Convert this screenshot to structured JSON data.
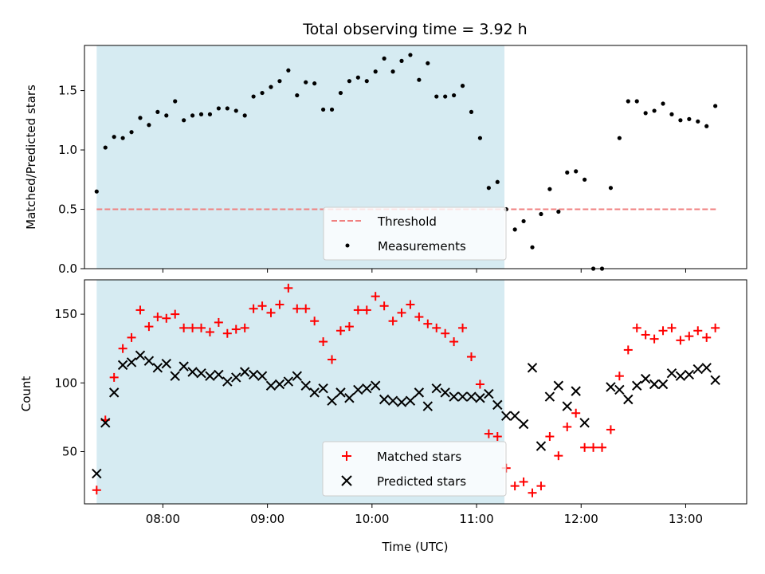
{
  "chart_data": [
    {
      "type": "scatter",
      "title": "Total observing time = 3.92 h",
      "xlabel": "",
      "ylabel": "Matched/Predicted stars",
      "xlim": [
        "07:15",
        "13:35"
      ],
      "ylim": [
        0.0,
        1.88
      ],
      "yticks": [
        0.0,
        0.5,
        1.0,
        1.5
      ],
      "yticklabels": [
        "0.0",
        "0.5",
        "1.0",
        "1.5"
      ],
      "shaded_span": {
        "start": "07:22",
        "end": "11:16",
        "color": "#add8e6"
      },
      "threshold": {
        "name": "Threshold",
        "value": 0.5,
        "from": "07:22",
        "to": "13:18",
        "color": "#f08080",
        "style": "dashed"
      },
      "legend": {
        "placement": "lower center",
        "entries": [
          "Threshold",
          "Measurements"
        ]
      },
      "series": [
        {
          "name": "Measurements",
          "marker": "dot",
          "color": "#000000",
          "x": [
            "07:22",
            "07:27",
            "07:32",
            "07:37",
            "07:42",
            "07:47",
            "07:52",
            "07:57",
            "08:02",
            "08:07",
            "08:12",
            "08:17",
            "08:22",
            "08:27",
            "08:32",
            "08:37",
            "08:42",
            "08:47",
            "08:52",
            "08:57",
            "09:02",
            "09:07",
            "09:12",
            "09:17",
            "09:22",
            "09:27",
            "09:32",
            "09:37",
            "09:42",
            "09:47",
            "09:52",
            "09:57",
            "10:02",
            "10:07",
            "10:12",
            "10:17",
            "10:22",
            "10:27",
            "10:32",
            "10:37",
            "10:42",
            "10:47",
            "10:52",
            "10:57",
            "11:02",
            "11:07",
            "11:12",
            "11:17",
            "11:22",
            "11:27",
            "11:32",
            "11:37",
            "11:42",
            "11:47",
            "11:52",
            "11:57",
            "12:02",
            "12:07",
            "12:12",
            "12:17",
            "12:22",
            "12:27",
            "12:32",
            "12:37",
            "12:42",
            "12:47",
            "12:52",
            "12:57",
            "13:02",
            "13:07",
            "13:12",
            "13:17"
          ],
          "y": [
            0.65,
            1.02,
            1.11,
            1.1,
            1.15,
            1.27,
            1.21,
            1.32,
            1.29,
            1.41,
            1.25,
            1.29,
            1.3,
            1.3,
            1.35,
            1.35,
            1.33,
            1.29,
            1.45,
            1.48,
            1.53,
            1.58,
            1.67,
            1.46,
            1.57,
            1.56,
            1.34,
            1.34,
            1.48,
            1.58,
            1.61,
            1.58,
            1.66,
            1.77,
            1.66,
            1.75,
            1.8,
            1.59,
            1.73,
            1.45,
            1.45,
            1.46,
            1.54,
            1.32,
            1.1,
            0.68,
            0.73,
            0.5,
            0.33,
            0.4,
            0.18,
            0.46,
            0.67,
            0.48,
            0.81,
            0.82,
            0.75,
            0.0,
            0.0,
            0.68,
            1.1,
            1.41,
            1.41,
            1.31,
            1.33,
            1.39,
            1.3,
            1.25,
            1.26,
            1.24,
            1.2,
            1.37
          ]
        }
      ]
    },
    {
      "type": "scatter",
      "title": "",
      "xlabel": "Time (UTC)",
      "ylabel": "Count",
      "xlim": [
        "07:15",
        "13:35"
      ],
      "ylim": [
        12,
        175
      ],
      "xticks": [
        "08:00",
        "09:00",
        "10:00",
        "11:00",
        "12:00",
        "13:00"
      ],
      "xticklabels": [
        "08:00",
        "09:00",
        "10:00",
        "11:00",
        "12:00",
        "13:00"
      ],
      "yticks": [
        50,
        100,
        150
      ],
      "yticklabels": [
        "50",
        "100",
        "150"
      ],
      "shaded_span": {
        "start": "07:22",
        "end": "11:16",
        "color": "#add8e6"
      },
      "legend": {
        "placement": "lower center",
        "entries": [
          "Matched stars",
          "Predicted stars"
        ]
      },
      "series": [
        {
          "name": "Matched stars",
          "marker": "plus",
          "color": "#ff0000",
          "x": [
            "07:22",
            "07:27",
            "07:32",
            "07:37",
            "07:42",
            "07:47",
            "07:52",
            "07:57",
            "08:02",
            "08:07",
            "08:12",
            "08:17",
            "08:22",
            "08:27",
            "08:32",
            "08:37",
            "08:42",
            "08:47",
            "08:52",
            "08:57",
            "09:02",
            "09:07",
            "09:12",
            "09:17",
            "09:22",
            "09:27",
            "09:32",
            "09:37",
            "09:42",
            "09:47",
            "09:52",
            "09:57",
            "10:02",
            "10:07",
            "10:12",
            "10:17",
            "10:22",
            "10:27",
            "10:32",
            "10:37",
            "10:42",
            "10:47",
            "10:52",
            "10:57",
            "11:02",
            "11:07",
            "11:12",
            "11:17",
            "11:22",
            "11:27",
            "11:32",
            "11:37",
            "11:42",
            "11:47",
            "11:52",
            "11:57",
            "12:02",
            "12:07",
            "12:12",
            "12:17",
            "12:22",
            "12:27",
            "12:32",
            "12:37",
            "12:42",
            "12:47",
            "12:52",
            "12:57",
            "13:02",
            "13:07",
            "13:12",
            "13:17"
          ],
          "y": [
            22,
            73,
            104,
            125,
            133,
            153,
            141,
            148,
            147,
            150,
            140,
            140,
            140,
            137,
            144,
            136,
            139,
            140,
            154,
            156,
            151,
            157,
            169,
            154,
            154,
            145,
            130,
            117,
            138,
            141,
            153,
            153,
            163,
            156,
            145,
            151,
            157,
            148,
            143,
            140,
            136,
            130,
            140,
            119,
            99,
            63,
            61,
            38,
            25,
            28,
            20,
            25,
            61,
            47,
            68,
            78,
            53,
            53,
            53,
            66,
            105,
            124,
            140,
            135,
            132,
            138,
            140,
            131,
            134,
            138,
            133,
            140
          ]
        },
        {
          "name": "Predicted stars",
          "marker": "x",
          "color": "#000000",
          "x": [
            "07:22",
            "07:27",
            "07:32",
            "07:37",
            "07:42",
            "07:47",
            "07:52",
            "07:57",
            "08:02",
            "08:07",
            "08:12",
            "08:17",
            "08:22",
            "08:27",
            "08:32",
            "08:37",
            "08:42",
            "08:47",
            "08:52",
            "08:57",
            "09:02",
            "09:07",
            "09:12",
            "09:17",
            "09:22",
            "09:27",
            "09:32",
            "09:37",
            "09:42",
            "09:47",
            "09:52",
            "09:57",
            "10:02",
            "10:07",
            "10:12",
            "10:17",
            "10:22",
            "10:27",
            "10:32",
            "10:37",
            "10:42",
            "10:47",
            "10:52",
            "10:57",
            "11:02",
            "11:07",
            "11:12",
            "11:17",
            "11:22",
            "11:27",
            "11:32",
            "11:37",
            "11:42",
            "11:47",
            "11:52",
            "11:57",
            "12:02",
            "12:07",
            "12:12",
            "12:17",
            "12:22",
            "12:27",
            "12:32",
            "12:37",
            "12:42",
            "12:47",
            "12:52",
            "12:57",
            "13:02",
            "13:07",
            "13:12",
            "13:17"
          ],
          "y": [
            34,
            71,
            93,
            113,
            115,
            120,
            116,
            111,
            114,
            105,
            112,
            108,
            107,
            105,
            106,
            101,
            104,
            108,
            106,
            105,
            98,
            99,
            101,
            105,
            98,
            93,
            96,
            87,
            93,
            89,
            95,
            96,
            98,
            88,
            87,
            86,
            87,
            93,
            83,
            96,
            93,
            90,
            90,
            90,
            89,
            92,
            84,
            76,
            76,
            70,
            111,
            54,
            90,
            98,
            83,
            94,
            71,
            null,
            null,
            97,
            95,
            88,
            98,
            103,
            99,
            99,
            107,
            105,
            106,
            110,
            111,
            102
          ]
        }
      ]
    }
  ]
}
